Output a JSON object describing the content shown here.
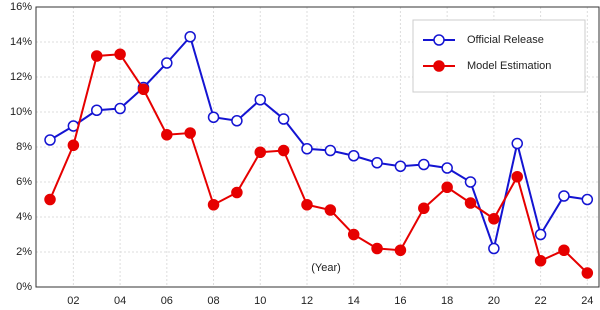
{
  "chart_data": {
    "type": "line",
    "annotation": "(Year)",
    "x": [
      1,
      2,
      3,
      4,
      5,
      6,
      7,
      8,
      9,
      10,
      11,
      12,
      13,
      14,
      15,
      16,
      17,
      18,
      19,
      20,
      21,
      22,
      23,
      24
    ],
    "xlim": [
      0.4,
      24.5
    ],
    "xticks": [
      {
        "value": 2,
        "label": "02"
      },
      {
        "value": 4,
        "label": "04"
      },
      {
        "value": 6,
        "label": "06"
      },
      {
        "value": 8,
        "label": "08"
      },
      {
        "value": 10,
        "label": "10"
      },
      {
        "value": 12,
        "label": "12"
      },
      {
        "value": 14,
        "label": "14"
      },
      {
        "value": 16,
        "label": "16"
      },
      {
        "value": 18,
        "label": "18"
      },
      {
        "value": 20,
        "label": "20"
      },
      {
        "value": 22,
        "label": "22"
      },
      {
        "value": 24,
        "label": "24"
      }
    ],
    "ylim": [
      0,
      16
    ],
    "yticks": [
      {
        "value": 0,
        "label": "0%"
      },
      {
        "value": 2,
        "label": "2%"
      },
      {
        "value": 4,
        "label": "4%"
      },
      {
        "value": 6,
        "label": "6%"
      },
      {
        "value": 8,
        "label": "8%"
      },
      {
        "value": 10,
        "label": "10%"
      },
      {
        "value": 12,
        "label": "12%"
      },
      {
        "value": 14,
        "label": "14%"
      },
      {
        "value": 16,
        "label": "16%"
      }
    ],
    "grid": true,
    "legend": "upper right",
    "series": [
      {
        "name": "Official Release",
        "color": "#1414d2",
        "filled": false,
        "values": [
          8.4,
          9.2,
          10.1,
          10.2,
          11.4,
          12.8,
          14.3,
          9.7,
          9.5,
          10.7,
          9.6,
          7.9,
          7.8,
          7.5,
          7.1,
          6.9,
          7.0,
          6.8,
          6.0,
          2.2,
          8.2,
          3.0,
          5.2,
          5.0
        ]
      },
      {
        "name": "Model Estimation",
        "color": "#e60000",
        "filled": true,
        "values": [
          5.0,
          8.1,
          13.2,
          13.3,
          11.3,
          8.7,
          8.8,
          4.7,
          5.4,
          7.7,
          7.8,
          4.7,
          4.4,
          3.0,
          2.2,
          2.1,
          4.5,
          5.7,
          4.8,
          3.9,
          6.3,
          1.5,
          2.1,
          0.8
        ]
      }
    ]
  }
}
